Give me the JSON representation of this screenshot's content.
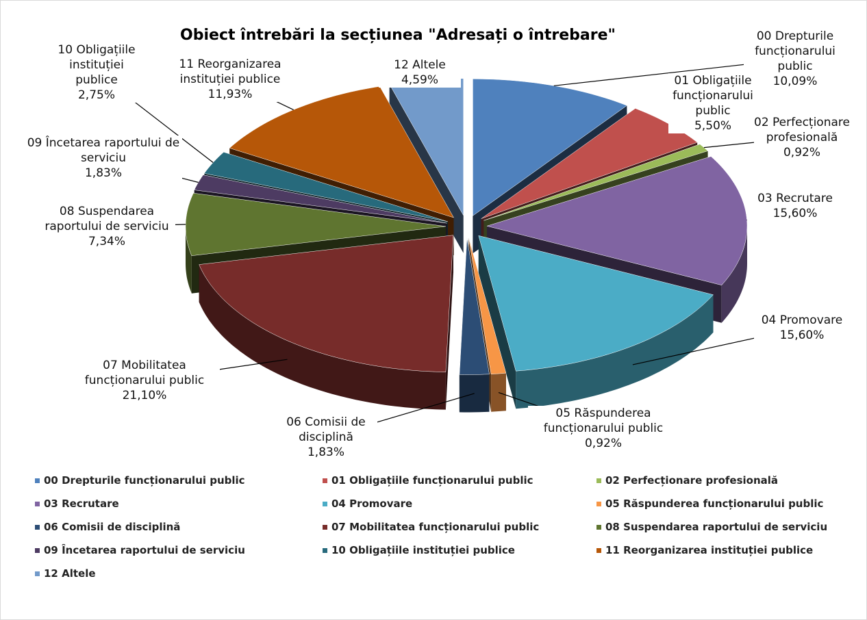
{
  "chart_data": {
    "type": "pie",
    "title": "Obiect  întrebări la secțiunea \"Adresați o întrebare\"",
    "categories": [
      "00 Drepturile funcționarului public",
      "01 Obligațiile funcționarului public",
      "02 Perfecționare profesională",
      "03 Recrutare",
      "04 Promovare",
      "05 Răspunderea funcționarului public",
      "06 Comisii de disciplină",
      "07 Mobilitatea funcționarului public",
      "08 Suspendarea raportului de serviciu",
      "09 Încetarea raportului de serviciu",
      "10 Obligațiile instituției publice",
      "11 Reorganizarea instituției publice",
      "12 Altele"
    ],
    "values": [
      10.09,
      5.5,
      0.92,
      15.6,
      15.6,
      0.92,
      1.83,
      21.1,
      7.34,
      1.83,
      2.75,
      11.93,
      4.59
    ],
    "value_labels": [
      "10,09%",
      "5,50%",
      "0,92%",
      "15,60%",
      "15,60%",
      "0,92%",
      "1,83%",
      "21,10%",
      "7,34%",
      "1,83%",
      "2,75%",
      "11,93%",
      "4,59%"
    ],
    "colors": [
      "#4f81bd",
      "#c0504d",
      "#9bbb59",
      "#8064a2",
      "#4bacc6",
      "#f79646",
      "#2c4d75",
      "#772c2a",
      "#5f7530",
      "#4d3b62",
      "#276a7c",
      "#b65708",
      "#729aca"
    ],
    "legend": "bottom"
  }
}
